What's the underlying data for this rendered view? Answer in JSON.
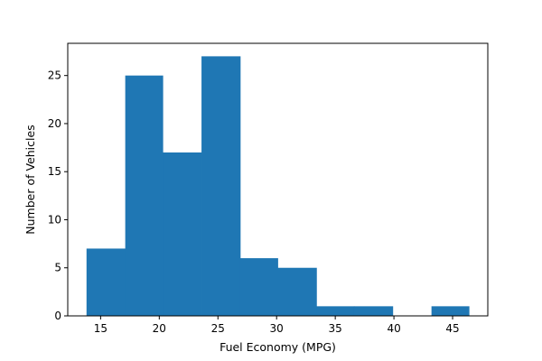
{
  "chart_data": {
    "type": "bar",
    "title": "",
    "xlabel": "Fuel Economy (MPG)",
    "ylabel": "Number of Vehicles",
    "bins": [
      {
        "start": 13.8,
        "end": 17.1,
        "count": 7
      },
      {
        "start": 17.1,
        "end": 20.3,
        "count": 25
      },
      {
        "start": 20.3,
        "end": 23.6,
        "count": 17
      },
      {
        "start": 23.6,
        "end": 26.9,
        "count": 27
      },
      {
        "start": 26.9,
        "end": 30.1,
        "count": 6
      },
      {
        "start": 30.1,
        "end": 33.4,
        "count": 5
      },
      {
        "start": 33.4,
        "end": 36.6,
        "count": 1
      },
      {
        "start": 36.6,
        "end": 39.9,
        "count": 1
      },
      {
        "start": 39.9,
        "end": 43.2,
        "count": 0
      },
      {
        "start": 43.2,
        "end": 46.4,
        "count": 1
      }
    ],
    "xlim": [
      12.2,
      48.0
    ],
    "ylim": [
      0,
      28.35
    ],
    "xticks": [
      15,
      20,
      25,
      30,
      35,
      40,
      45
    ],
    "yticks": [
      0,
      5,
      10,
      15,
      20,
      25
    ],
    "grid": false,
    "bar_color": "#1f77b4"
  }
}
